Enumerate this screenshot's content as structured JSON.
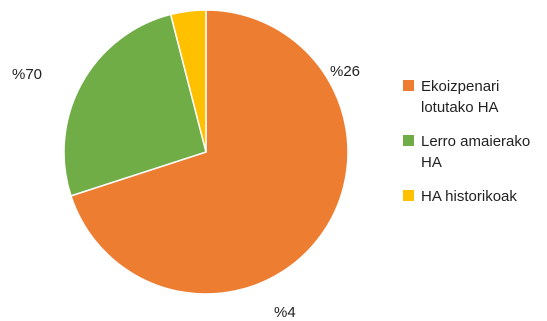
{
  "chart_data": {
    "type": "pie",
    "title": "",
    "slices": [
      {
        "label": "Ekoizpenari lotutako HA",
        "value": 70,
        "value_label": "%70",
        "color": "#ED7D31"
      },
      {
        "label": "Lerro amaierako HA",
        "value": 26,
        "value_label": "%26",
        "color": "#70AD47"
      },
      {
        "label": "HA historikoak",
        "value": 4,
        "value_label": "%4",
        "color": "#FFC000"
      }
    ],
    "start_angle_deg": 0,
    "direction": "clockwise",
    "legend_position": "right"
  }
}
